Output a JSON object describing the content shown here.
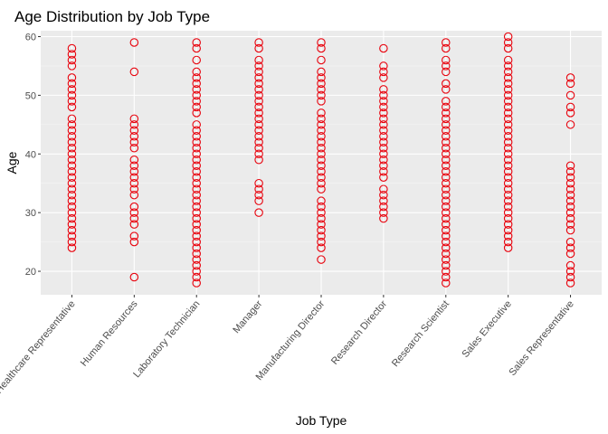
{
  "colors": {
    "panel_background": "#ebebeb",
    "grid_major": "#ffffff",
    "grid_minor": "#f5f5f5",
    "point_stroke": "#e8000b",
    "tick_label": "#4d4d4d"
  },
  "chart_data": {
    "type": "scatter",
    "title": "Age Distribution by Job Type",
    "xlabel": "Job Type",
    "ylabel": "Age",
    "ylim": [
      16,
      61
    ],
    "y_ticks": [
      20,
      30,
      40,
      50,
      60
    ],
    "grid": true,
    "marker": "open-circle",
    "categories": [
      "Healthcare Representative",
      "Human Resources",
      "Laboratory Technician",
      "Manager",
      "Manufacturing Director",
      "Research Director",
      "Research Scientist",
      "Sales Executive",
      "Sales Representative"
    ],
    "ages_by_category": [
      [
        24,
        25,
        26,
        27,
        28,
        29,
        30,
        31,
        32,
        33,
        34,
        35,
        36,
        37,
        38,
        39,
        40,
        41,
        42,
        43,
        44,
        45,
        46,
        48,
        49,
        50,
        51,
        52,
        53,
        55,
        56,
        57,
        58
      ],
      [
        19,
        25,
        26,
        28,
        29,
        30,
        31,
        33,
        34,
        35,
        36,
        37,
        38,
        39,
        41,
        42,
        43,
        44,
        45,
        46,
        54,
        59
      ],
      [
        18,
        19,
        20,
        21,
        22,
        23,
        24,
        25,
        26,
        27,
        28,
        29,
        30,
        31,
        32,
        33,
        34,
        35,
        36,
        37,
        38,
        39,
        40,
        41,
        42,
        43,
        44,
        45,
        47,
        48,
        49,
        50,
        51,
        52,
        53,
        54,
        56,
        58,
        59
      ],
      [
        30,
        32,
        33,
        34,
        35,
        39,
        40,
        41,
        42,
        43,
        44,
        45,
        46,
        47,
        48,
        49,
        50,
        51,
        52,
        53,
        54,
        55,
        56,
        58,
        59
      ],
      [
        22,
        24,
        25,
        26,
        27,
        28,
        29,
        30,
        31,
        32,
        34,
        35,
        36,
        37,
        38,
        39,
        40,
        41,
        42,
        43,
        44,
        45,
        46,
        47,
        49,
        50,
        51,
        52,
        53,
        54,
        56,
        58,
        59
      ],
      [
        29,
        30,
        31,
        32,
        33,
        34,
        36,
        37,
        38,
        39,
        40,
        41,
        42,
        43,
        44,
        45,
        46,
        47,
        48,
        49,
        50,
        51,
        53,
        54,
        55,
        58
      ],
      [
        18,
        19,
        20,
        21,
        22,
        23,
        24,
        25,
        26,
        27,
        28,
        29,
        30,
        31,
        32,
        33,
        34,
        35,
        36,
        37,
        38,
        39,
        40,
        41,
        42,
        43,
        44,
        45,
        46,
        47,
        48,
        49,
        51,
        52,
        54,
        55,
        56,
        58,
        59
      ],
      [
        24,
        25,
        26,
        27,
        28,
        29,
        30,
        31,
        32,
        33,
        34,
        35,
        36,
        37,
        38,
        39,
        40,
        41,
        42,
        43,
        44,
        45,
        46,
        47,
        48,
        49,
        50,
        51,
        52,
        53,
        54,
        55,
        56,
        58,
        59,
        60
      ],
      [
        18,
        19,
        20,
        21,
        23,
        24,
        25,
        27,
        28,
        29,
        30,
        31,
        32,
        33,
        34,
        35,
        36,
        37,
        38,
        45,
        47,
        48,
        50,
        52,
        53
      ]
    ]
  }
}
